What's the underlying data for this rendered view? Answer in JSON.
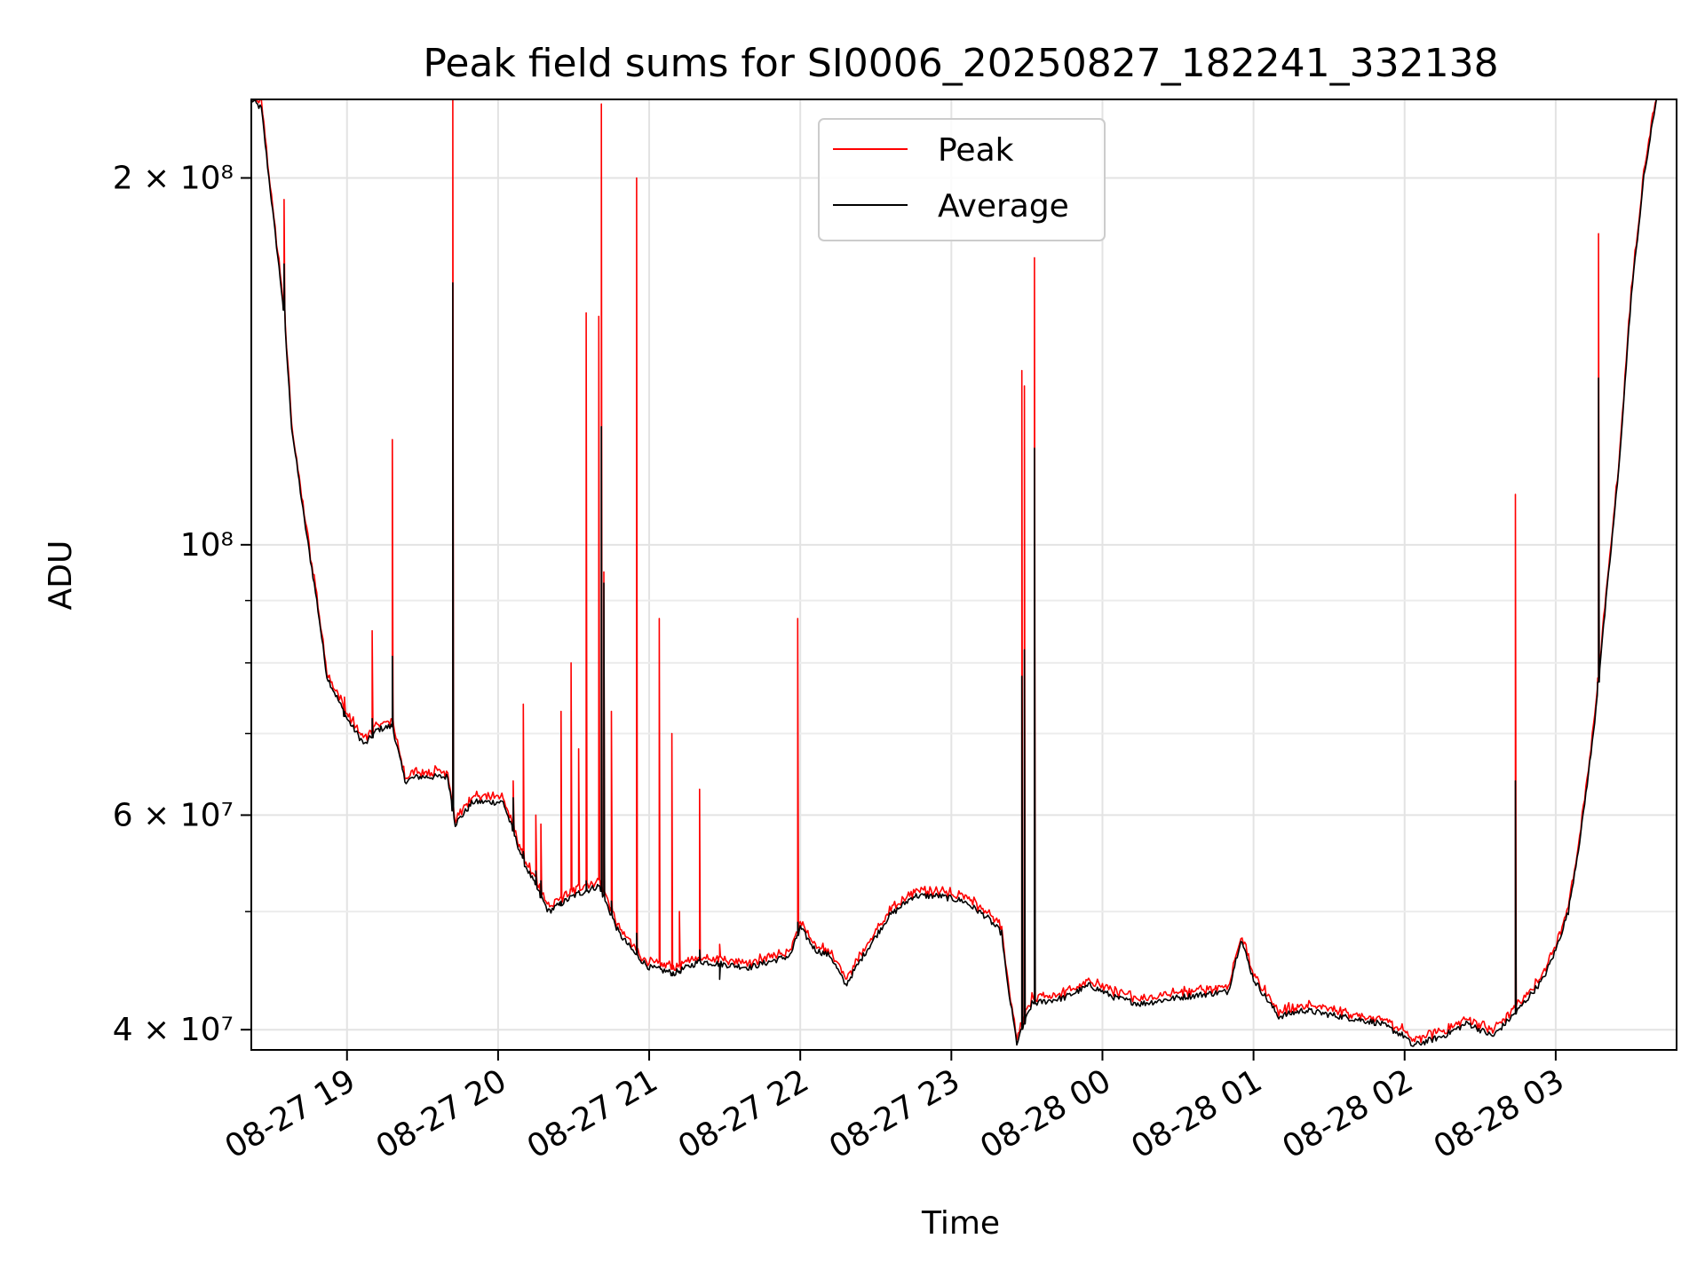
{
  "chart_data": {
    "type": "line",
    "title": "Peak field sums for SI0006_20250827_182241_332138",
    "xlabel": "Time",
    "ylabel": "ADU",
    "y_scale": "log",
    "ylim": [
      38500000,
      232000000
    ],
    "xlim": [
      "2025-08-27 18:22",
      "2025-08-28 03:48"
    ],
    "grid": true,
    "legend_position": "top-center",
    "x_ticks": [
      "08-27 19",
      "08-27 20",
      "08-27 21",
      "08-27 22",
      "08-27 23",
      "08-28 00",
      "08-28 01",
      "08-28 02",
      "08-28 03"
    ],
    "y_major_ticks": [
      {
        "label": "4 × 10⁷",
        "value": 40000000
      },
      {
        "label": "6 × 10⁷",
        "value": 60000000
      },
      {
        "label": "10⁸",
        "value": 100000000
      },
      {
        "label": "2 × 10⁸",
        "value": 200000000
      }
    ],
    "y_minor_ticks": [
      50000000,
      70000000,
      80000000,
      90000000
    ],
    "series": [
      {
        "name": "Peak",
        "color": "#ff0000"
      },
      {
        "name": "Average",
        "color": "#000000"
      }
    ],
    "average_series": {
      "x": [
        "2025-08-27 18:22",
        "2025-08-27 18:26",
        "2025-08-27 18:29",
        "2025-08-27 18:35",
        "2025-08-27 18:38",
        "2025-08-27 18:43",
        "2025-08-27 18:48",
        "2025-08-27 18:52",
        "2025-08-27 19:00",
        "2025-08-27 19:07",
        "2025-08-27 19:12",
        "2025-08-27 19:18",
        "2025-08-27 19:23",
        "2025-08-27 19:28",
        "2025-08-27 19:40",
        "2025-08-27 19:43",
        "2025-08-27 19:50",
        "2025-08-27 20:02",
        "2025-08-27 20:10",
        "2025-08-27 20:20",
        "2025-08-27 20:30",
        "2025-08-27 20:40",
        "2025-08-27 20:48",
        "2025-08-27 20:55",
        "2025-08-27 21:00",
        "2025-08-27 21:10",
        "2025-08-27 21:20",
        "2025-08-27 21:40",
        "2025-08-27 21:56",
        "2025-08-27 22:00",
        "2025-08-27 22:06",
        "2025-08-27 22:12",
        "2025-08-27 22:18",
        "2025-08-27 22:25",
        "2025-08-27 22:35",
        "2025-08-27 22:45",
        "2025-08-27 22:55",
        "2025-08-27 23:05",
        "2025-08-27 23:14",
        "2025-08-27 23:20",
        "2025-08-27 23:22",
        "2025-08-27 23:26",
        "2025-08-27 23:32",
        "2025-08-27 23:45",
        "2025-08-27 23:55",
        "2025-08-28 00:05",
        "2025-08-28 00:15",
        "2025-08-28 00:30",
        "2025-08-28 00:50",
        "2025-08-28 00:55",
        "2025-08-28 01:00",
        "2025-08-28 01:10",
        "2025-08-28 01:20",
        "2025-08-28 01:35",
        "2025-08-28 01:50",
        "2025-08-28 02:00",
        "2025-08-28 02:03",
        "2025-08-28 02:15",
        "2025-08-28 02:25",
        "2025-08-28 02:35",
        "2025-08-28 02:45",
        "2025-08-28 02:55",
        "2025-08-28 03:00",
        "2025-08-28 03:05",
        "2025-08-28 03:10",
        "2025-08-28 03:15",
        "2025-08-28 03:20",
        "2025-08-28 03:25",
        "2025-08-28 03:30",
        "2025-08-28 03:35",
        "2025-08-28 03:40"
      ],
      "y": [
        232000000,
        228000000,
        200000000,
        155000000,
        125000000,
        105000000,
        90000000,
        78000000,
        72000000,
        68500000,
        70500000,
        71000000,
        64000000,
        64500000,
        64500000,
        59000000,
        61500000,
        61500000,
        55000000,
        50000000,
        51500000,
        52500000,
        48000000,
        46000000,
        45000000,
        44500000,
        45500000,
        45000000,
        46000000,
        48500000,
        46500000,
        46000000,
        43500000,
        46000000,
        49500000,
        51500000,
        51500000,
        51000000,
        49500000,
        48000000,
        44000000,
        39000000,
        42000000,
        42500000,
        43500000,
        42500000,
        42000000,
        42500000,
        43000000,
        47500000,
        44000000,
        41000000,
        41500000,
        41000000,
        40500000,
        39500000,
        38800000,
        39500000,
        40500000,
        39500000,
        41500000,
        44000000,
        46500000,
        50000000,
        58000000,
        70000000,
        90000000,
        115000000,
        160000000,
        200000000,
        232000000
      ]
    },
    "spikes": [
      {
        "x": "2025-08-27 18:35",
        "peak": 192000000,
        "average": 170000000
      },
      {
        "x": "2025-08-27 18:59",
        "peak": 75000000,
        "average": 73000000
      },
      {
        "x": "2025-08-27 19:10",
        "peak": 85000000,
        "average": 72000000
      },
      {
        "x": "2025-08-27 19:18",
        "peak": 122000000,
        "average": 81000000
      },
      {
        "x": "2025-08-27 19:42",
        "peak": 232000000,
        "average": 164000000
      },
      {
        "x": "2025-08-27 20:06",
        "peak": 64000000,
        "average": 62000000
      },
      {
        "x": "2025-08-27 20:10",
        "peak": 74000000,
        "average": 56000000
      },
      {
        "x": "2025-08-27 20:15",
        "peak": 60000000,
        "average": 54000000
      },
      {
        "x": "2025-08-27 20:17",
        "peak": 59000000,
        "average": 53000000
      },
      {
        "x": "2025-08-27 20:25",
        "peak": 73000000,
        "average": 51000000
      },
      {
        "x": "2025-08-27 20:29",
        "peak": 80000000,
        "average": 51500000
      },
      {
        "x": "2025-08-27 20:32",
        "peak": 68000000,
        "average": 52000000
      },
      {
        "x": "2025-08-27 20:35",
        "peak": 155000000,
        "average": 53000000
      },
      {
        "x": "2025-08-27 20:40",
        "peak": 154000000,
        "average": 52500000
      },
      {
        "x": "2025-08-27 20:41",
        "peak": 230000000,
        "average": 125000000
      },
      {
        "x": "2025-08-27 20:42",
        "peak": 95000000,
        "average": 93000000
      },
      {
        "x": "2025-08-27 20:45",
        "peak": 73000000,
        "average": 51000000
      },
      {
        "x": "2025-08-27 20:55",
        "peak": 200000000,
        "average": 48000000
      },
      {
        "x": "2025-08-27 21:04",
        "peak": 87000000,
        "average": 45000000
      },
      {
        "x": "2025-08-27 21:09",
        "peak": 70000000,
        "average": 44500000
      },
      {
        "x": "2025-08-27 21:12",
        "peak": 50000000,
        "average": 44500000
      },
      {
        "x": "2025-08-27 21:20",
        "peak": 63000000,
        "average": 46500000
      },
      {
        "x": "2025-08-27 21:28",
        "peak": 47000000,
        "average": 44000000
      },
      {
        "x": "2025-08-27 21:59",
        "peak": 87000000,
        "average": 49000000
      },
      {
        "x": "2025-08-27 23:28",
        "peak": 139000000,
        "average": 78000000
      },
      {
        "x": "2025-08-27 23:29",
        "peak": 135000000,
        "average": 82000000
      },
      {
        "x": "2025-08-27 23:33",
        "peak": 172000000,
        "average": 120000000
      },
      {
        "x": "2025-08-28 02:44",
        "peak": 110000000,
        "average": 64000000
      },
      {
        "x": "2025-08-28 03:17",
        "peak": 180000000,
        "average": 137000000
      }
    ]
  }
}
